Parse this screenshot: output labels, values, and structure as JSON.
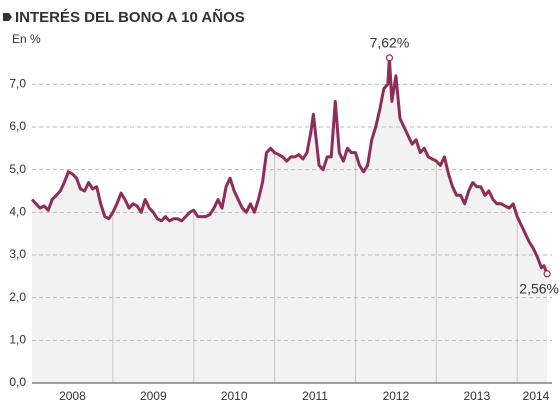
{
  "chart_data": {
    "type": "line",
    "title": "INTERÉS DEL BONO A 10 AÑOS",
    "y_label": "En %",
    "x": [
      2008.0,
      2008.05,
      2008.1,
      2008.15,
      2008.2,
      2008.25,
      2008.3,
      2008.35,
      2008.4,
      2008.45,
      2008.5,
      2008.55,
      2008.6,
      2008.65,
      2008.7,
      2008.75,
      2008.8,
      2008.85,
      2008.9,
      2008.95,
      2009.0,
      2009.05,
      2009.1,
      2009.15,
      2009.2,
      2009.25,
      2009.3,
      2009.35,
      2009.4,
      2009.45,
      2009.5,
      2009.55,
      2009.6,
      2009.65,
      2009.7,
      2009.75,
      2009.8,
      2009.85,
      2009.9,
      2009.95,
      2010.0,
      2010.05,
      2010.1,
      2010.15,
      2010.2,
      2010.25,
      2010.3,
      2010.35,
      2010.4,
      2010.45,
      2010.5,
      2010.55,
      2010.6,
      2010.65,
      2010.7,
      2010.75,
      2010.8,
      2010.85,
      2010.9,
      2010.95,
      2011.0,
      2011.05,
      2011.1,
      2011.15,
      2011.2,
      2011.25,
      2011.3,
      2011.35,
      2011.4,
      2011.45,
      2011.48,
      2011.52,
      2011.55,
      2011.6,
      2011.65,
      2011.7,
      2011.75,
      2011.8,
      2011.85,
      2011.9,
      2011.95,
      2012.0,
      2012.05,
      2012.1,
      2012.15,
      2012.2,
      2012.25,
      2012.3,
      2012.35,
      2012.4,
      2012.42,
      2012.45,
      2012.5,
      2012.55,
      2012.6,
      2012.65,
      2012.7,
      2012.75,
      2012.8,
      2012.85,
      2012.9,
      2012.95,
      2013.0,
      2013.05,
      2013.1,
      2013.15,
      2013.2,
      2013.25,
      2013.3,
      2013.35,
      2013.4,
      2013.45,
      2013.5,
      2013.55,
      2013.6,
      2013.65,
      2013.7,
      2013.75,
      2013.8,
      2013.85,
      2013.9,
      2013.95,
      2014.0,
      2014.05,
      2014.1,
      2014.15,
      2014.2,
      2014.25,
      2014.3,
      2014.33,
      2014.37
    ],
    "series": [
      {
        "color": "#8e2d57",
        "values": [
          4.3,
          4.2,
          4.1,
          4.15,
          4.05,
          4.3,
          4.4,
          4.5,
          4.7,
          4.95,
          4.9,
          4.8,
          4.55,
          4.5,
          4.7,
          4.55,
          4.6,
          4.2,
          3.9,
          3.85,
          4.0,
          4.2,
          4.45,
          4.3,
          4.1,
          4.2,
          4.15,
          4.0,
          4.3,
          4.1,
          4.0,
          3.85,
          3.8,
          3.9,
          3.8,
          3.85,
          3.85,
          3.8,
          3.9,
          4.0,
          4.05,
          3.9,
          3.9,
          3.9,
          3.95,
          4.1,
          4.3,
          4.1,
          4.6,
          4.8,
          4.5,
          4.3,
          4.1,
          4.0,
          4.2,
          4.0,
          4.3,
          4.7,
          5.4,
          5.5,
          5.4,
          5.35,
          5.3,
          5.2,
          5.3,
          5.3,
          5.35,
          5.25,
          5.4,
          5.9,
          6.3,
          5.6,
          5.1,
          5.0,
          5.3,
          5.3,
          6.6,
          5.4,
          5.2,
          5.5,
          5.4,
          5.4,
          5.1,
          4.95,
          5.1,
          5.7,
          6.0,
          6.4,
          6.9,
          7.0,
          7.62,
          6.6,
          7.2,
          6.2,
          6.0,
          5.8,
          5.6,
          5.7,
          5.4,
          5.5,
          5.3,
          5.25,
          5.2,
          5.1,
          5.3,
          4.9,
          4.6,
          4.4,
          4.4,
          4.2,
          4.5,
          4.7,
          4.6,
          4.6,
          4.4,
          4.5,
          4.3,
          4.2,
          4.2,
          4.15,
          4.1,
          4.2,
          3.9,
          3.7,
          3.5,
          3.3,
          3.15,
          2.95,
          2.7,
          2.75,
          2.56
        ]
      }
    ],
    "annotations": [
      {
        "x": 2012.42,
        "y": 7.62,
        "label": "7,62%"
      },
      {
        "x": 2014.37,
        "y": 2.56,
        "label": "2,56%"
      }
    ],
    "xlim": [
      2008.0,
      2014.43
    ],
    "xticks": [
      {
        "value": 2008.5,
        "label": "2008"
      },
      {
        "value": 2009.5,
        "label": "2009"
      },
      {
        "value": 2010.5,
        "label": "2010"
      },
      {
        "value": 2011.5,
        "label": "2011"
      },
      {
        "value": 2012.5,
        "label": "2012"
      },
      {
        "value": 2013.5,
        "label": "2013"
      },
      {
        "value": 2014.5,
        "label": "2014"
      }
    ],
    "ylim": [
      0,
      7.5
    ],
    "yticks": [
      {
        "value": 0,
        "label": "0,0"
      },
      {
        "value": 1,
        "label": "1,0"
      },
      {
        "value": 2,
        "label": "2,0"
      },
      {
        "value": 3,
        "label": "3,0"
      },
      {
        "value": 4,
        "label": "4,0"
      },
      {
        "value": 5,
        "label": "5,0"
      },
      {
        "value": 6,
        "label": "6,0"
      },
      {
        "value": 7,
        "label": "7,0"
      }
    ],
    "grid": true
  }
}
